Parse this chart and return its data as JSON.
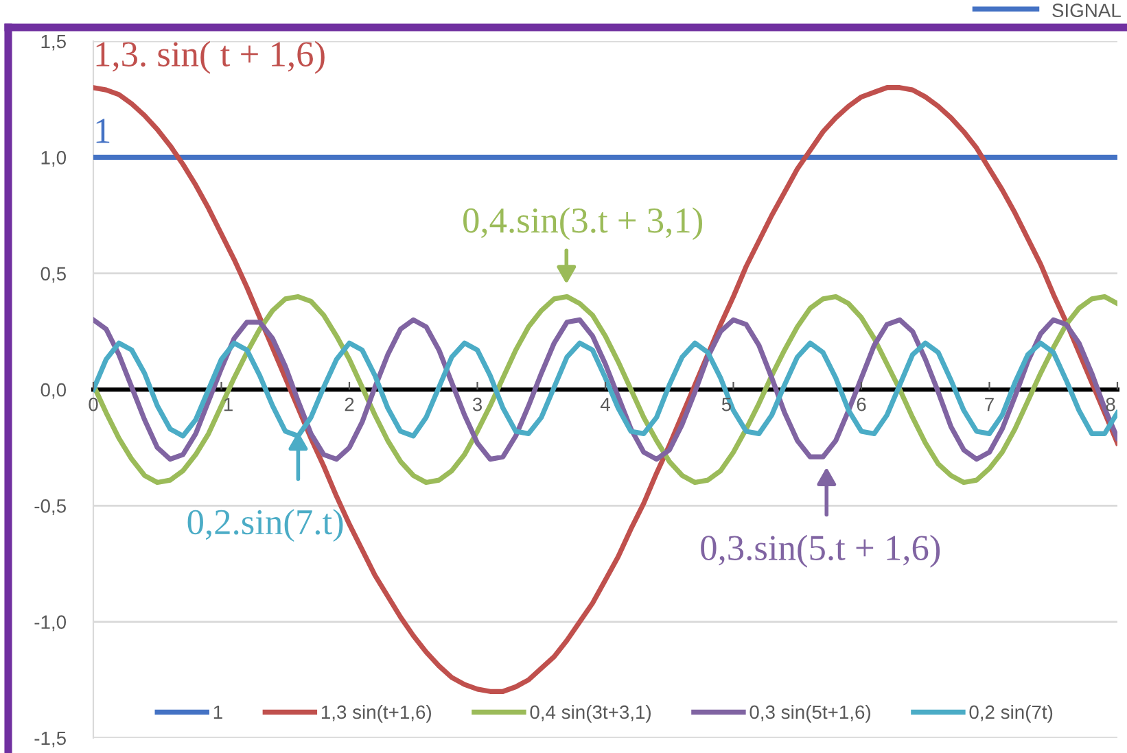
{
  "chart_data": {
    "type": "line",
    "x": [
      0,
      0.1,
      0.2,
      0.3,
      0.4,
      0.5,
      0.6,
      0.7,
      0.8,
      0.9,
      1,
      1.1,
      1.2,
      1.3,
      1.4,
      1.5,
      1.6,
      1.7,
      1.8,
      1.9,
      2,
      2.1,
      2.2,
      2.3,
      2.4,
      2.5,
      2.6,
      2.7,
      2.8,
      2.9,
      3,
      3.1,
      3.2,
      3.3,
      3.4,
      3.5,
      3.6,
      3.7,
      3.8,
      3.9,
      4,
      4.1,
      4.2,
      4.3,
      4.4,
      4.5,
      4.6,
      4.7,
      4.8,
      4.9,
      5,
      5.1,
      5.2,
      5.3,
      5.4,
      5.5,
      5.6,
      5.7,
      5.8,
      5.9,
      6,
      6.1,
      6.2,
      6.3,
      6.4,
      6.5,
      6.6,
      6.7,
      6.8,
      6.9,
      7,
      7.1,
      7.2,
      7.3,
      7.4,
      7.5,
      7.6,
      7.7,
      7.8,
      7.9,
      8
    ],
    "series": [
      {
        "name": "1",
        "color": "#4472c4",
        "values": [
          1,
          1,
          1,
          1,
          1,
          1,
          1,
          1,
          1,
          1,
          1,
          1,
          1,
          1,
          1,
          1,
          1,
          1,
          1,
          1,
          1,
          1,
          1,
          1,
          1,
          1,
          1,
          1,
          1,
          1,
          1,
          1,
          1,
          1,
          1,
          1,
          1,
          1,
          1,
          1,
          1,
          1,
          1,
          1,
          1,
          1,
          1,
          1,
          1,
          1,
          1,
          1,
          1,
          1,
          1,
          1,
          1,
          1,
          1,
          1,
          1,
          1,
          1,
          1,
          1,
          1,
          1,
          1,
          1,
          1,
          1,
          1,
          1,
          1,
          1,
          1,
          1,
          1,
          1,
          1,
          1
        ]
      },
      {
        "name": "1,3 sin(t+1,6)",
        "color": "#c0504d",
        "values": [
          1.3,
          1.29,
          1.27,
          1.23,
          1.18,
          1.12,
          1.05,
          0.97,
          0.88,
          0.78,
          0.67,
          0.56,
          0.44,
          0.31,
          0.18,
          0.05,
          -0.08,
          -0.21,
          -0.33,
          -0.46,
          -0.58,
          -0.69,
          -0.8,
          -0.89,
          -0.98,
          -1.06,
          -1.13,
          -1.19,
          -1.24,
          -1.27,
          -1.29,
          -1.3,
          -1.3,
          -1.28,
          -1.25,
          -1.2,
          -1.15,
          -1.08,
          -1.0,
          -0.92,
          -0.82,
          -0.72,
          -0.6,
          -0.49,
          -0.36,
          -0.24,
          -0.11,
          0.02,
          0.15,
          0.28,
          0.4,
          0.53,
          0.64,
          0.75,
          0.85,
          0.95,
          1.03,
          1.11,
          1.17,
          1.22,
          1.26,
          1.28,
          1.3,
          1.3,
          1.29,
          1.26,
          1.22,
          1.17,
          1.11,
          1.04,
          0.95,
          0.86,
          0.76,
          0.65,
          0.54,
          0.41,
          0.29,
          0.16,
          0.03,
          -0.1,
          -0.23
        ]
      },
      {
        "name": "0,4 sin(3t+3,1)",
        "color": "#9bbb59",
        "values": [
          0.02,
          -0.1,
          -0.21,
          -0.3,
          -0.37,
          -0.4,
          -0.39,
          -0.35,
          -0.28,
          -0.19,
          -0.07,
          0.05,
          0.16,
          0.26,
          0.34,
          0.39,
          0.4,
          0.38,
          0.32,
          0.23,
          0.13,
          0.01,
          -0.11,
          -0.22,
          -0.31,
          -0.37,
          -0.4,
          -0.39,
          -0.35,
          -0.28,
          -0.18,
          -0.07,
          0.05,
          0.17,
          0.27,
          0.34,
          0.39,
          0.4,
          0.37,
          0.32,
          0.23,
          0.12,
          0.0,
          -0.12,
          -0.22,
          -0.31,
          -0.37,
          -0.4,
          -0.39,
          -0.35,
          -0.27,
          -0.17,
          -0.06,
          0.06,
          0.17,
          0.27,
          0.35,
          0.39,
          0.4,
          0.37,
          0.31,
          0.22,
          0.11,
          0.0,
          -0.12,
          -0.23,
          -0.32,
          -0.37,
          -0.4,
          -0.39,
          -0.34,
          -0.27,
          -0.17,
          -0.05,
          0.07,
          0.18,
          0.28,
          0.35,
          0.39,
          0.4,
          0.37
        ]
      },
      {
        "name": "0,3 sin(5t+1,6)",
        "color": "#8064a2",
        "values": [
          0.3,
          0.26,
          0.15,
          0.01,
          -0.13,
          -0.25,
          -0.3,
          -0.28,
          -0.19,
          -0.05,
          0.09,
          0.22,
          0.29,
          0.29,
          0.22,
          0.1,
          -0.05,
          -0.19,
          -0.28,
          -0.3,
          -0.25,
          -0.14,
          0.01,
          0.15,
          0.26,
          0.3,
          0.27,
          0.17,
          0.03,
          -0.11,
          -0.23,
          -0.3,
          -0.29,
          -0.2,
          -0.07,
          0.07,
          0.2,
          0.29,
          0.3,
          0.23,
          0.11,
          -0.03,
          -0.17,
          -0.27,
          -0.3,
          -0.26,
          -0.15,
          -0.01,
          0.14,
          0.25,
          0.3,
          0.28,
          0.19,
          0.05,
          -0.1,
          -0.22,
          -0.29,
          -0.29,
          -0.22,
          -0.09,
          0.05,
          0.19,
          0.28,
          0.3,
          0.25,
          0.13,
          -0.01,
          -0.16,
          -0.26,
          -0.3,
          -0.27,
          -0.17,
          -0.03,
          0.12,
          0.24,
          0.3,
          0.28,
          0.2,
          0.07,
          -0.08,
          -0.21
        ]
      },
      {
        "name": "0,2 sin(7t)",
        "color": "#4bacc6",
        "values": [
          0,
          0.13,
          0.2,
          0.17,
          0.07,
          -0.07,
          -0.17,
          -0.2,
          -0.13,
          0.0,
          0.13,
          0.2,
          0.17,
          0.06,
          -0.07,
          -0.18,
          -0.2,
          -0.12,
          0.01,
          0.13,
          0.2,
          0.17,
          0.06,
          -0.08,
          -0.18,
          -0.2,
          -0.12,
          0.01,
          0.14,
          0.2,
          0.17,
          0.06,
          -0.08,
          -0.18,
          -0.19,
          -0.12,
          0.01,
          0.14,
          0.2,
          0.17,
          0.05,
          -0.08,
          -0.18,
          -0.19,
          -0.12,
          0.02,
          0.14,
          0.2,
          0.16,
          0.05,
          -0.09,
          -0.18,
          -0.19,
          -0.11,
          0.02,
          0.14,
          0.2,
          0.16,
          0.05,
          -0.09,
          -0.18,
          -0.19,
          -0.11,
          0.02,
          0.15,
          0.2,
          0.16,
          0.04,
          -0.09,
          -0.18,
          -0.19,
          -0.11,
          0.03,
          0.15,
          0.2,
          0.16,
          0.04,
          -0.09,
          -0.19,
          -0.19,
          -0.1
        ]
      }
    ],
    "xlim": [
      0,
      8
    ],
    "xticks": [
      0,
      1,
      2,
      3,
      4,
      5,
      6,
      7,
      8
    ],
    "ylim": [
      -1.5,
      1.5
    ],
    "yticks": [
      {
        "value": -1.5,
        "label": "-1,5"
      },
      {
        "value": -1,
        "label": "-1,0"
      },
      {
        "value": -0.5,
        "label": "-0,5"
      },
      {
        "value": 0,
        "label": "0,0"
      },
      {
        "value": 0.5,
        "label": "0,5"
      },
      {
        "value": 1,
        "label": "1,0"
      },
      {
        "value": 1.5,
        "label": "1,5"
      }
    ],
    "grid": "y",
    "legend": "bottom",
    "marker": "none",
    "line_style": "solid",
    "annotations": [
      "1,3. sin( t + 1,6)",
      "1",
      "0,4.sin(3.t + 3,1)",
      "0,2.sin(7.t)",
      "0,3.sin(5.t + 1,6)",
      "SIGNAL"
    ]
  }
}
